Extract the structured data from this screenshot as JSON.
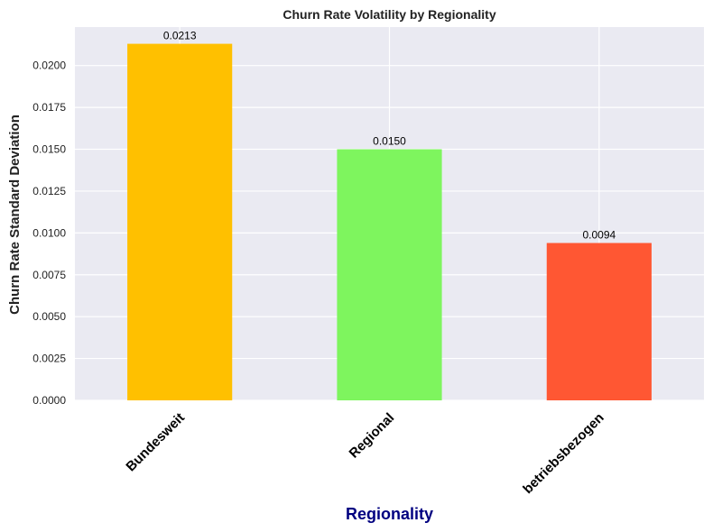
{
  "chart_data": {
    "type": "bar",
    "title": "Churn Rate Volatility by Regionality",
    "xlabel": "Regionality",
    "ylabel": "Churn Rate Standard Deviation",
    "categories": [
      "Bundesweit",
      "Regional",
      "betriebsbezogen"
    ],
    "values": [
      0.0213,
      0.015,
      0.0094
    ],
    "data_labels": [
      "0.0213",
      "0.0150",
      "0.0094"
    ],
    "bar_colors": [
      "#FFC000",
      "#7EF55E",
      "#FF5733"
    ],
    "ylim": [
      0,
      0.0223
    ],
    "yticks": [
      0,
      0.0025,
      0.005,
      0.0075,
      0.01,
      0.0125,
      0.015,
      0.0175,
      0.02
    ],
    "ytick_labels": [
      "0.0000",
      "0.0025",
      "0.0050",
      "0.0075",
      "0.0100",
      "0.0125",
      "0.0150",
      "0.0175",
      "0.0200"
    ],
    "grid": true,
    "plot_background": "#EAEAF2",
    "xlabel_color": "#000080",
    "legend": "none"
  }
}
